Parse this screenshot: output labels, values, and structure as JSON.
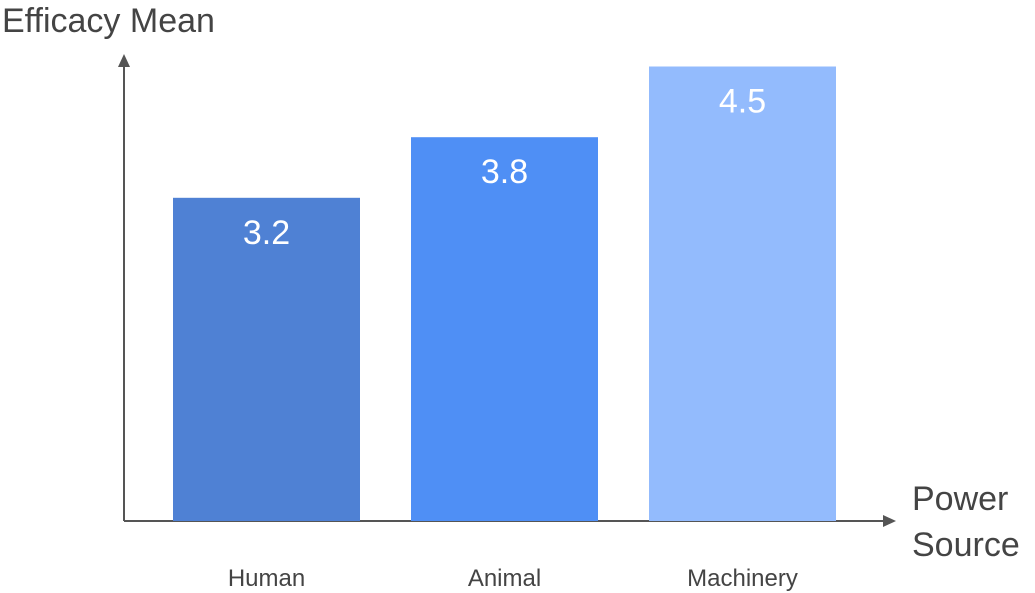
{
  "chart_data": {
    "type": "bar",
    "title": "",
    "ylabel": "Efficacy Mean",
    "xlabel_lines": [
      "Power",
      "Source"
    ],
    "categories": [
      "Human",
      "Animal",
      "Machinery"
    ],
    "values": [
      3.2,
      3.8,
      4.5
    ],
    "value_labels": [
      "3.2",
      "3.8",
      "4.5"
    ],
    "colors": [
      "#4f81d4",
      "#4f8ff5",
      "#93bbfd"
    ],
    "ylim": [
      0,
      5
    ],
    "grid": false,
    "legend": "none"
  }
}
